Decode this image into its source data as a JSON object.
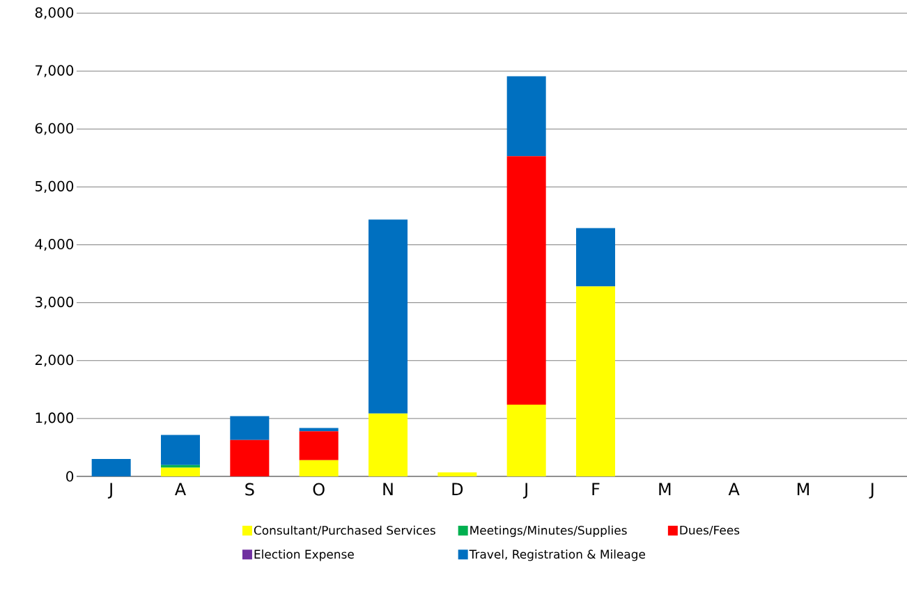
{
  "chart_data": {
    "type": "bar",
    "stacked": true,
    "categories": [
      "J",
      "A",
      "S",
      "O",
      "N",
      "D",
      "J",
      "F",
      "M",
      "A",
      "M",
      "J"
    ],
    "series": [
      {
        "name": "Consultant/Purchased Services",
        "color": "#ffff00",
        "values": [
          0,
          150,
          0,
          280,
          1085,
          70,
          1240,
          3280,
          0,
          0,
          0,
          0
        ]
      },
      {
        "name": "Meetings/Minutes/Supplies",
        "color": "#00b050",
        "values": [
          0,
          45,
          0,
          0,
          0,
          0,
          0,
          0,
          0,
          0,
          0,
          0
        ]
      },
      {
        "name": "Dues/Fees",
        "color": "#ff0000",
        "values": [
          0,
          0,
          630,
          500,
          0,
          0,
          4290,
          0,
          0,
          0,
          0,
          0
        ]
      },
      {
        "name": "Election Expense",
        "color": "#7030a0",
        "values": [
          0,
          0,
          0,
          0,
          0,
          0,
          0,
          0,
          0,
          0,
          0,
          0
        ]
      },
      {
        "name": "Travel, Registration & Mileage",
        "color": "#0070c0",
        "values": [
          300,
          520,
          410,
          55,
          3350,
          0,
          1380,
          1010,
          0,
          0,
          0,
          0
        ]
      }
    ],
    "ylim": [
      0,
      8000
    ],
    "yticks": [
      0,
      {
        "value": 1000,
        "label": "1,000"
      },
      {
        "value": 2000,
        "label": "2,000"
      },
      {
        "value": 3000,
        "label": "3,000"
      },
      {
        "value": 4000,
        "label": "4,000"
      },
      {
        "value": 5000,
        "label": "5,000"
      },
      {
        "value": 6000,
        "label": "6,000"
      },
      {
        "value": 7000,
        "label": "7,000"
      },
      {
        "value": 8000,
        "label": "8,000"
      }
    ],
    "grid": "y",
    "legend": "bottom"
  }
}
